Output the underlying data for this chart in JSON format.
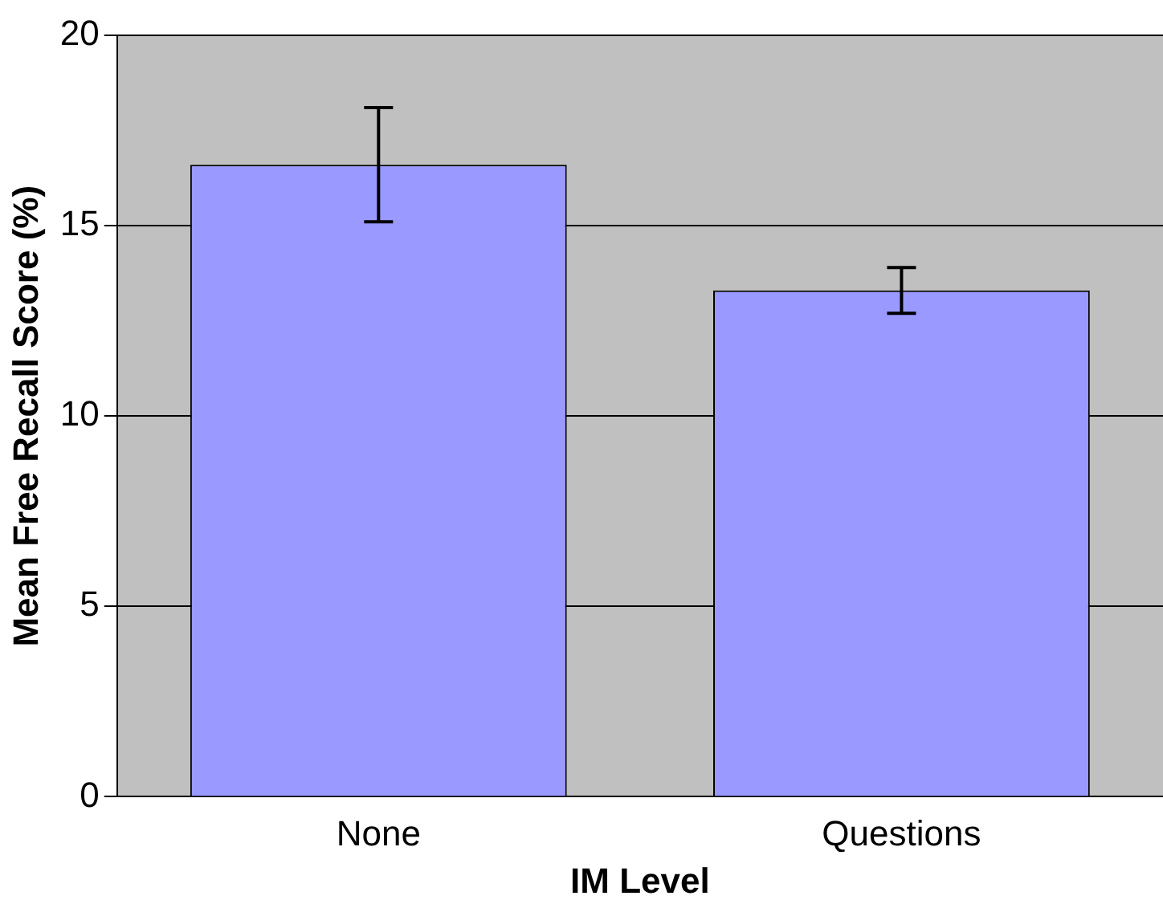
{
  "chart_data": {
    "type": "bar",
    "xlabel": "IM Level",
    "ylabel": "Mean Free Recall Score (%)",
    "categories": [
      "None",
      "Questions"
    ],
    "values": [
      16.6,
      13.3
    ],
    "errors": [
      1.5,
      0.6
    ],
    "color": "#9999ff",
    "ylim": [
      0,
      20
    ],
    "yticks": [
      0,
      5,
      10,
      15,
      20
    ],
    "grid": "y",
    "legend": false
  }
}
